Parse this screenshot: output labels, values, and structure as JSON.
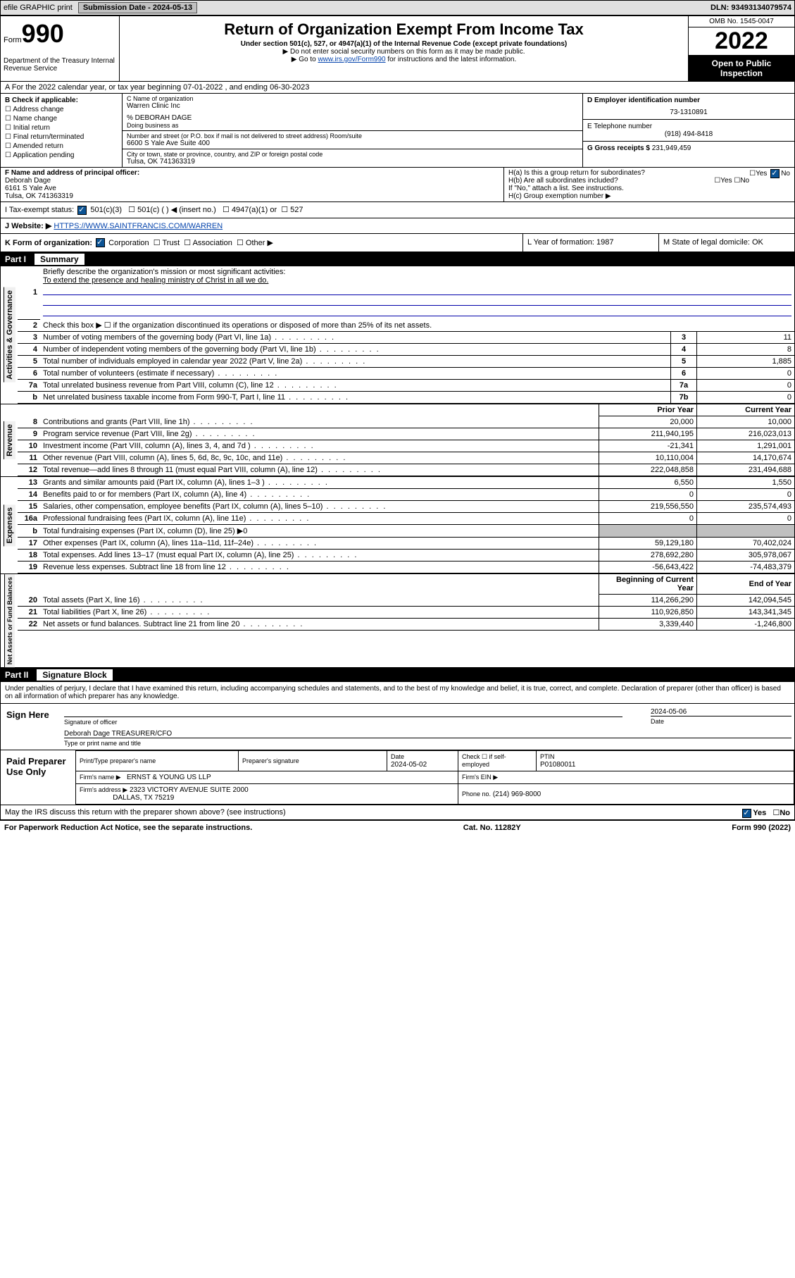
{
  "top": {
    "efile": "efile GRAPHIC print",
    "submission_label": "Submission Date - 2024-05-13",
    "dln": "DLN: 93493134079574"
  },
  "header": {
    "form_prefix": "Form",
    "form_number": "990",
    "title": "Return of Organization Exempt From Income Tax",
    "sub1": "Under section 501(c), 527, or 4947(a)(1) of the Internal Revenue Code (except private foundations)",
    "sub2": "▶ Do not enter social security numbers on this form as it may be made public.",
    "sub3_pre": "▶ Go to ",
    "sub3_link": "www.irs.gov/Form990",
    "sub3_post": " for instructions and the latest information.",
    "dept": "Department of the Treasury Internal Revenue Service",
    "omb": "OMB No. 1545-0047",
    "year": "2022",
    "open": "Open to Public Inspection"
  },
  "row_a": "A For the 2022 calendar year, or tax year beginning 07-01-2022    , and ending 06-30-2023",
  "col_b": {
    "label": "B Check if applicable:",
    "c1": "Address change",
    "c2": "Name change",
    "c3": "Initial return",
    "c4": "Final return/terminated",
    "c5": "Amended return",
    "c6": "Application pending"
  },
  "col_c": {
    "name_lbl": "C Name of organization",
    "name": "Warren Clinic Inc",
    "care": "% DEBORAH DAGE",
    "dba_lbl": "Doing business as",
    "addr_lbl": "Number and street (or P.O. box if mail is not delivered to street address)   Room/suite",
    "addr": "6600 S Yale Ave Suite 400",
    "city_lbl": "City or town, state or province, country, and ZIP or foreign postal code",
    "city": "Tulsa, OK  741363319"
  },
  "col_d": {
    "ein_lbl": "D Employer identification number",
    "ein": "73-1310891",
    "tel_lbl": "E Telephone number",
    "tel": "(918) 494-8418",
    "gross_lbl": "G Gross receipts $",
    "gross": "231,949,459"
  },
  "row_f": {
    "label": "F Name and address of principal officer:",
    "name": "Deborah Dage",
    "addr": "6161 S Yale Ave",
    "city": "Tulsa, OK  741363319"
  },
  "row_h": {
    "ha": "H(a)  Is this a group return for subordinates?",
    "hb": "H(b)  Are all subordinates included?",
    "hb_note": "If \"No,\" attach a list. See instructions.",
    "hc": "H(c)  Group exemption number ▶"
  },
  "row_i": {
    "label": "I  Tax-exempt status:",
    "o1": "501(c)(3)",
    "o2": "501(c) (   ) ◀ (insert no.)",
    "o3": "4947(a)(1) or",
    "o4": "527"
  },
  "row_j": {
    "label": "J  Website: ▶",
    "url": "HTTPS://WWW.SAINTFRANCIS.COM/WARREN"
  },
  "row_k": {
    "k": "K Form of organization:",
    "corp": "Corporation",
    "trust": "Trust",
    "assoc": "Association",
    "other": "Other ▶",
    "l": "L Year of formation: 1987",
    "m": "M State of legal domicile: OK"
  },
  "part1": {
    "label": "Part I",
    "title": "Summary",
    "l1a": "Briefly describe the organization's mission or most significant activities:",
    "l1b": "To extend the presence and healing ministry of Christ in all we do.",
    "l2": "Check this box ▶ ☐  if the organization discontinued its operations or disposed of more than 25% of its net assets.",
    "rows": [
      {
        "n": "3",
        "t": "Number of voting members of the governing body (Part VI, line 1a)",
        "c": "3",
        "v": "11"
      },
      {
        "n": "4",
        "t": "Number of independent voting members of the governing body (Part VI, line 1b)",
        "c": "4",
        "v": "8"
      },
      {
        "n": "5",
        "t": "Total number of individuals employed in calendar year 2022 (Part V, line 2a)",
        "c": "5",
        "v": "1,885"
      },
      {
        "n": "6",
        "t": "Total number of volunteers (estimate if necessary)",
        "c": "6",
        "v": "0"
      },
      {
        "n": "7a",
        "t": "Total unrelated business revenue from Part VIII, column (C), line 12",
        "c": "7a",
        "v": "0"
      },
      {
        "n": "b",
        "t": "Net unrelated business taxable income from Form 990-T, Part I, line 11",
        "c": "7b",
        "v": "0"
      }
    ],
    "prior": "Prior Year",
    "current": "Current Year",
    "rev": [
      {
        "n": "8",
        "t": "Contributions and grants (Part VIII, line 1h)",
        "p": "20,000",
        "c": "10,000"
      },
      {
        "n": "9",
        "t": "Program service revenue (Part VIII, line 2g)",
        "p": "211,940,195",
        "c": "216,023,013"
      },
      {
        "n": "10",
        "t": "Investment income (Part VIII, column (A), lines 3, 4, and 7d )",
        "p": "-21,341",
        "c": "1,291,001"
      },
      {
        "n": "11",
        "t": "Other revenue (Part VIII, column (A), lines 5, 6d, 8c, 9c, 10c, and 11e)",
        "p": "10,110,004",
        "c": "14,170,674"
      },
      {
        "n": "12",
        "t": "Total revenue—add lines 8 through 11 (must equal Part VIII, column (A), line 12)",
        "p": "222,048,858",
        "c": "231,494,688"
      }
    ],
    "exp": [
      {
        "n": "13",
        "t": "Grants and similar amounts paid (Part IX, column (A), lines 1–3 )",
        "p": "6,550",
        "c": "1,550"
      },
      {
        "n": "14",
        "t": "Benefits paid to or for members (Part IX, column (A), line 4)",
        "p": "0",
        "c": "0"
      },
      {
        "n": "15",
        "t": "Salaries, other compensation, employee benefits (Part IX, column (A), lines 5–10)",
        "p": "219,556,550",
        "c": "235,574,493"
      },
      {
        "n": "16a",
        "t": "Professional fundraising fees (Part IX, column (A), line 11e)",
        "p": "0",
        "c": "0"
      }
    ],
    "exp_b": {
      "n": "b",
      "t": "Total fundraising expenses (Part IX, column (D), line 25) ▶0"
    },
    "exp2": [
      {
        "n": "17",
        "t": "Other expenses (Part IX, column (A), lines 11a–11d, 11f–24e)",
        "p": "59,129,180",
        "c": "70,402,024"
      },
      {
        "n": "18",
        "t": "Total expenses. Add lines 13–17 (must equal Part IX, column (A), line 25)",
        "p": "278,692,280",
        "c": "305,978,067"
      },
      {
        "n": "19",
        "t": "Revenue less expenses. Subtract line 18 from line 12",
        "p": "-56,643,422",
        "c": "-74,483,379"
      }
    ],
    "begin": "Beginning of Current Year",
    "end": "End of Year",
    "net": [
      {
        "n": "20",
        "t": "Total assets (Part X, line 16)",
        "p": "114,266,290",
        "c": "142,094,545"
      },
      {
        "n": "21",
        "t": "Total liabilities (Part X, line 26)",
        "p": "110,926,850",
        "c": "143,341,345"
      },
      {
        "n": "22",
        "t": "Net assets or fund balances. Subtract line 21 from line 20",
        "p": "3,339,440",
        "c": "-1,246,800"
      }
    ],
    "sides": {
      "gov": "Activities & Governance",
      "rev": "Revenue",
      "exp": "Expenses",
      "net": "Net Assets or Fund Balances"
    }
  },
  "part2": {
    "label": "Part II",
    "title": "Signature Block",
    "perjury": "Under penalties of perjury, I declare that I have examined this return, including accompanying schedules and statements, and to the best of my knowledge and belief, it is true, correct, and complete. Declaration of preparer (other than officer) is based on all information of which preparer has any knowledge.",
    "sign_here": "Sign Here",
    "sig_officer": "Signature of officer",
    "sig_date": "2024-05-06",
    "sig_name": "Deborah Dage TREASURER/CFO",
    "sig_type": "Type or print name and title",
    "paid": "Paid Preparer Use Only",
    "prep_name_lbl": "Print/Type preparer's name",
    "prep_sig_lbl": "Preparer's signature",
    "prep_date_lbl": "Date",
    "prep_date": "2024-05-02",
    "prep_check": "Check ☐ if self-employed",
    "ptin_lbl": "PTIN",
    "ptin": "P01080011",
    "firm_name_lbl": "Firm's name    ▶",
    "firm_name": "ERNST & YOUNG US LLP",
    "firm_ein_lbl": "Firm's EIN ▶",
    "firm_addr_lbl": "Firm's address ▶",
    "firm_addr1": "2323 VICTORY AVENUE SUITE 2000",
    "firm_addr2": "DALLAS, TX  75219",
    "firm_phone_lbl": "Phone no.",
    "firm_phone": "(214) 969-8000",
    "discuss": "May the IRS discuss this return with the preparer shown above? (see instructions)"
  },
  "footer": {
    "left": "For Paperwork Reduction Act Notice, see the separate instructions.",
    "mid": "Cat. No. 11282Y",
    "right": "Form 990 (2022)"
  },
  "yesno": {
    "yes": "Yes",
    "no": "No"
  }
}
